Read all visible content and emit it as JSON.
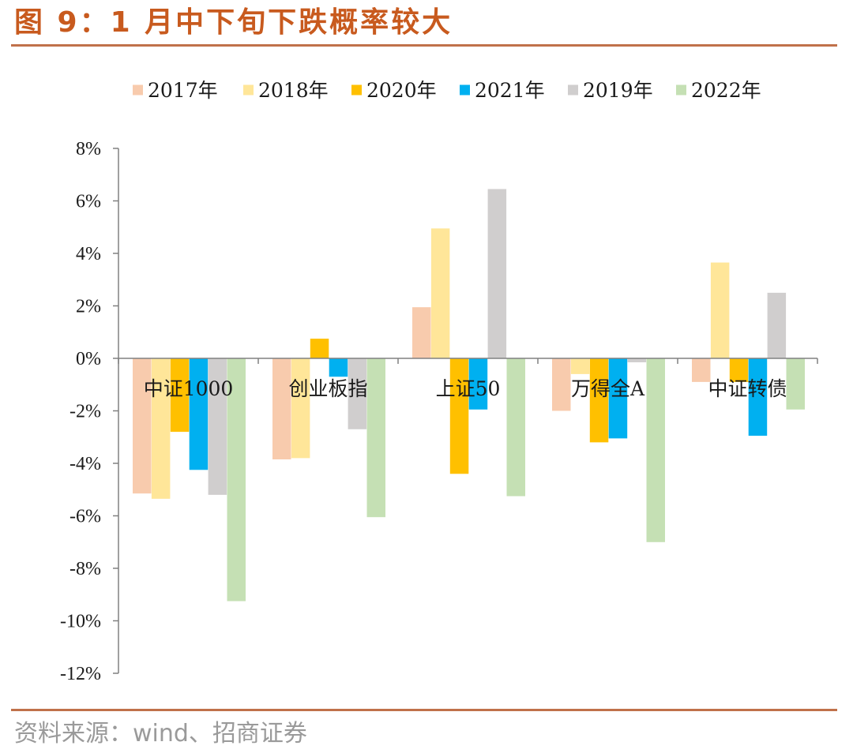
{
  "title": "图 9：1 月中下旬下跌概率较大",
  "source": "资料来源：wind、招商证券",
  "chart_data": {
    "type": "bar",
    "title": "图 9：1 月中下旬下跌概率较大",
    "xlabel": "",
    "ylabel": "",
    "categories": [
      "中证1000",
      "创业板指",
      "上证50",
      "万得全A",
      "中证转债"
    ],
    "series": [
      {
        "name": "2017年",
        "color": "#F8CBAD",
        "values": [
          -5.15,
          -3.85,
          1.95,
          -2.0,
          -0.9
        ]
      },
      {
        "name": "2018年",
        "color": "#FFE699",
        "values": [
          -5.35,
          -3.8,
          4.95,
          -0.6,
          3.65
        ]
      },
      {
        "name": "2020年",
        "color": "#FFC000",
        "values": [
          -2.8,
          0.75,
          -4.4,
          -3.2,
          -0.9
        ]
      },
      {
        "name": "2021年",
        "color": "#00B0F0",
        "values": [
          -4.25,
          -0.7,
          -1.95,
          -3.05,
          -2.95
        ]
      },
      {
        "name": "2019年",
        "color": "#D0CECE",
        "values": [
          -5.2,
          -2.7,
          6.45,
          -0.15,
          2.5
        ]
      },
      {
        "name": "2022年",
        "color": "#C5E0B4",
        "values": [
          -9.25,
          -6.05,
          -5.25,
          -7.0,
          -1.95
        ]
      }
    ],
    "ylim": [
      -12,
      8
    ],
    "yticks": [
      8,
      6,
      4,
      2,
      0,
      -2,
      -4,
      -6,
      -8,
      -10,
      -12
    ],
    "ytick_labels": [
      "8%",
      "6%",
      "4%",
      "2%",
      "0%",
      "-2%",
      "-4%",
      "-6%",
      "-8%",
      "-10%",
      "-12%"
    ],
    "legend_position": "top",
    "grid": false
  }
}
